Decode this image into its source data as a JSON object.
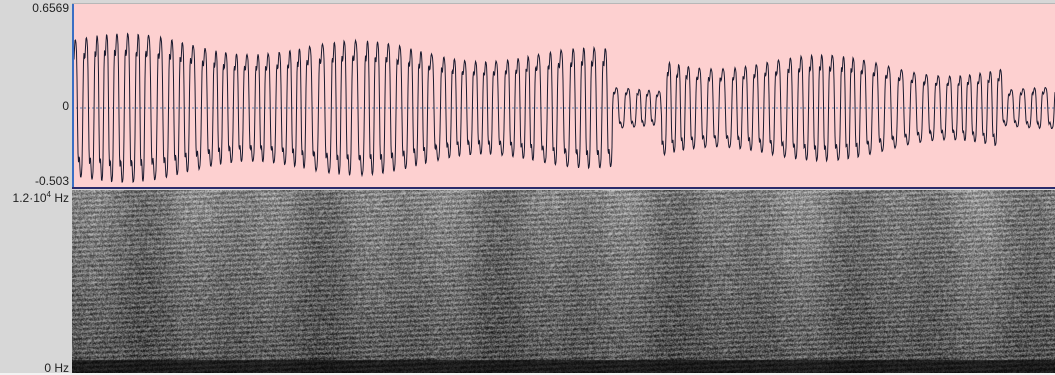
{
  "waveform": {
    "max_label": "0.6569",
    "zero_label": "0",
    "min_label": "-0.503",
    "colors": {
      "background": "#fdd0d0",
      "trace": "#1a1a2e",
      "zero_line": "#5b7fb0"
    }
  },
  "spectrogram": {
    "top_label_base": "1.2·10",
    "top_label_exp": "4",
    "top_label_unit": " Hz",
    "bottom_label": "0 Hz",
    "colors": {
      "background": "#333333",
      "energy": "#ffffff"
    }
  }
}
